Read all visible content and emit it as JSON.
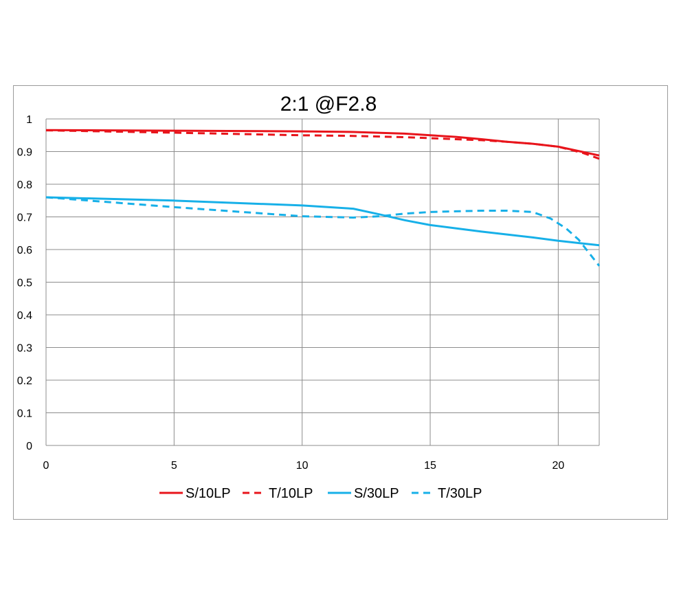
{
  "chart_data": {
    "type": "line",
    "title": "2:1  @F2.8",
    "xlabel": "",
    "ylabel": "",
    "xlim": [
      0,
      21.6
    ],
    "ylim": [
      0,
      1
    ],
    "xticks": [
      0,
      5,
      10,
      15,
      20
    ],
    "yticks": [
      0,
      0.1,
      0.2,
      0.3,
      0.4,
      0.5,
      0.6,
      0.7,
      0.8,
      0.9,
      1
    ],
    "ytick_labels": [
      "0",
      "0.1",
      "0.2",
      "0.3",
      "0.4",
      "0.5",
      "0.6",
      "0.7",
      "0.8",
      "0.9",
      "1"
    ],
    "grid": true,
    "legend_position": "bottom",
    "series": [
      {
        "name": "S/10LP",
        "color": "#e8141b",
        "dash": "solid",
        "x": [
          0,
          5,
          10,
          12,
          14,
          15,
          16,
          17,
          18,
          19,
          20,
          21,
          21.6
        ],
        "y": [
          0.966,
          0.964,
          0.962,
          0.96,
          0.955,
          0.95,
          0.945,
          0.938,
          0.93,
          0.924,
          0.915,
          0.898,
          0.888
        ]
      },
      {
        "name": "T/10LP",
        "color": "#e8141b",
        "dash": "dashed",
        "x": [
          0,
          5,
          10,
          12,
          14,
          15,
          16,
          17,
          18,
          19,
          20,
          21,
          21.6
        ],
        "y": [
          0.965,
          0.958,
          0.95,
          0.948,
          0.944,
          0.941,
          0.938,
          0.935,
          0.93,
          0.924,
          0.915,
          0.895,
          0.878
        ]
      },
      {
        "name": "S/30LP",
        "color": "#17b0e8",
        "dash": "solid",
        "x": [
          0,
          5,
          10,
          12,
          13,
          14,
          15,
          16,
          17,
          18,
          19,
          20,
          21,
          21.6
        ],
        "y": [
          0.76,
          0.75,
          0.735,
          0.725,
          0.708,
          0.69,
          0.675,
          0.665,
          0.655,
          0.646,
          0.637,
          0.627,
          0.618,
          0.613
        ]
      },
      {
        "name": "T/30LP",
        "color": "#17b0e8",
        "dash": "dashed",
        "x": [
          0,
          5,
          10,
          12,
          13,
          14,
          15,
          16,
          17,
          18,
          19,
          19.7,
          20.3,
          20.8,
          21.2,
          21.6
        ],
        "y": [
          0.76,
          0.73,
          0.702,
          0.698,
          0.702,
          0.71,
          0.715,
          0.717,
          0.719,
          0.719,
          0.715,
          0.695,
          0.665,
          0.63,
          0.59,
          0.55
        ]
      }
    ]
  }
}
